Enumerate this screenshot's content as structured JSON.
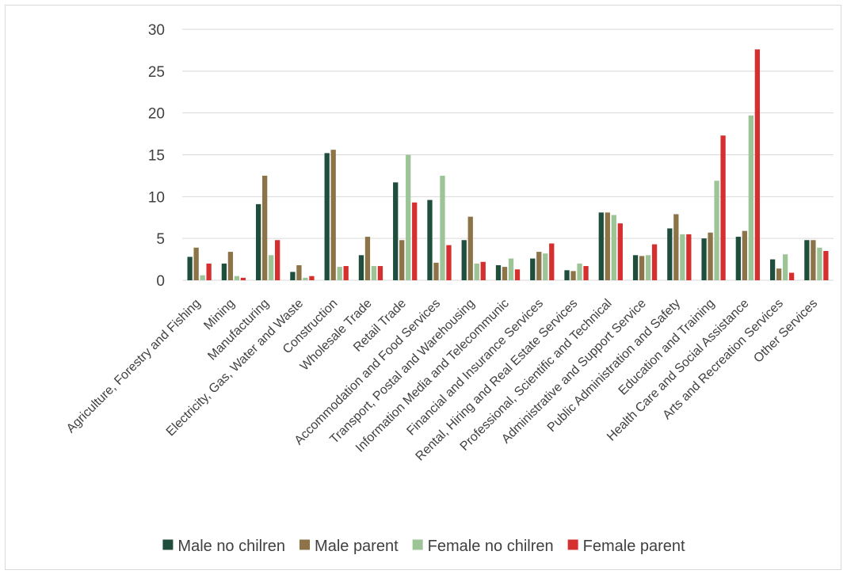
{
  "chart_data": {
    "type": "bar",
    "title": "",
    "xlabel": "",
    "ylabel": "",
    "ylim": [
      0,
      30
    ],
    "yticks": [
      0,
      5,
      10,
      15,
      20,
      25,
      30
    ],
    "grid": true,
    "legend_position": "bottom",
    "categories": [
      "Agriculture, Forestry and Fishing",
      "Mining",
      "Manufacturing",
      "Electricity, Gas, Water and Waste",
      "Construction",
      "Wholesale Trade",
      "Retail Trade",
      "Accommodation and Food Services",
      "Transport, Postal and Warehousing",
      "Information Media and Telecommunic",
      "Financial and Insurance Services",
      "Rental, Hiring and Real Estate Services",
      "Professional, Scientific and Technical",
      "Administrative and Support Service",
      "Public Administration and Safety",
      "Education and Training",
      "Health Care and Social Assistance",
      "Arts and Recreation Services",
      "Other Services"
    ],
    "series": [
      {
        "name": "Male no chilren",
        "color": "#1f4e3d",
        "values": [
          2.8,
          2.0,
          9.1,
          1.0,
          15.2,
          3.0,
          11.7,
          9.6,
          4.8,
          1.8,
          2.6,
          1.2,
          8.1,
          3.0,
          6.2,
          5.0,
          5.2,
          2.5,
          4.8
        ]
      },
      {
        "name": "Male parent",
        "color": "#8c7448",
        "values": [
          3.9,
          3.4,
          12.5,
          1.8,
          15.6,
          5.2,
          4.8,
          2.1,
          7.6,
          1.6,
          3.4,
          1.1,
          8.1,
          2.9,
          7.9,
          5.7,
          5.9,
          1.4,
          4.8
        ]
      },
      {
        "name": "Female no chilren",
        "color": "#9dc497",
        "values": [
          0.6,
          0.5,
          3.0,
          0.3,
          1.6,
          1.7,
          15.0,
          12.5,
          2.0,
          2.6,
          3.2,
          2.0,
          7.8,
          3.0,
          5.5,
          11.9,
          19.7,
          3.1,
          3.9
        ]
      },
      {
        "name": "Female parent",
        "color": "#d62f2f",
        "values": [
          2.0,
          0.3,
          4.8,
          0.5,
          1.7,
          1.7,
          9.3,
          4.2,
          2.2,
          1.3,
          4.4,
          1.7,
          6.8,
          4.3,
          5.5,
          17.3,
          27.6,
          0.9,
          3.5
        ]
      }
    ]
  }
}
